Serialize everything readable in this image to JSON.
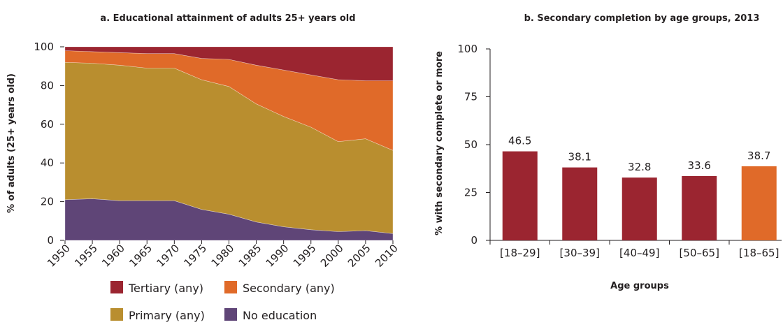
{
  "chart_data": [
    {
      "type": "area",
      "stacked": true,
      "title": "a. Educational attainment of adults 25+ years old",
      "xlabel": "",
      "ylabel": "% of adults (25+ years old)",
      "ylim": [
        0,
        100
      ],
      "yticks": [
        "0",
        "20",
        "40",
        "60",
        "80",
        "100"
      ],
      "x": [
        "1950",
        "1955",
        "1960",
        "1965",
        "1970",
        "1975",
        "1980",
        "1985",
        "1990",
        "1995",
        "2000",
        "2005",
        "2010"
      ],
      "series": [
        {
          "name": "No education",
          "color": "#5f4577",
          "values": [
            21,
            21.5,
            20.5,
            20.5,
            20.5,
            16,
            13.5,
            9.5,
            7,
            5.5,
            4.5,
            5,
            3.5
          ]
        },
        {
          "name": "Primary (any)",
          "color": "#b98e2f",
          "values": [
            71,
            70,
            70,
            68.5,
            68.5,
            67,
            66,
            61,
            57,
            53,
            46.5,
            47.5,
            43
          ]
        },
        {
          "name": "Secondary (any)",
          "color": "#e06a29",
          "values": [
            6,
            6,
            6.5,
            7.5,
            7.5,
            11,
            14,
            20,
            24,
            27,
            32,
            30,
            36
          ]
        },
        {
          "name": "Tertiary (any)",
          "color": "#9b2530",
          "values": [
            2,
            2.5,
            3,
            3.5,
            3.5,
            6,
            6.5,
            9.5,
            12,
            14.5,
            17,
            17.5,
            17.5
          ]
        }
      ],
      "legend": [
        {
          "name": "Tertiary (any)",
          "color": "#9b2530"
        },
        {
          "name": "Secondary (any)",
          "color": "#e06a29"
        },
        {
          "name": "Primary (any)",
          "color": "#b98e2f"
        },
        {
          "name": "No education",
          "color": "#5f4577"
        }
      ],
      "legend_position": "bottom"
    },
    {
      "type": "bar",
      "title": "b. Secondary completion by age groups, 2013",
      "xlabel": "Age groups",
      "ylabel": "% with secondary complete or more",
      "ylim": [
        0,
        100
      ],
      "yticks": [
        "0",
        "25",
        "50",
        "75",
        "100"
      ],
      "categories": [
        "[18–29]",
        "[30–39]",
        "[40–49]",
        "[50–65]",
        "[18–65]"
      ],
      "values": [
        46.5,
        38.1,
        32.8,
        33.6,
        38.7
      ],
      "value_labels": [
        "46.5",
        "38.1",
        "32.8",
        "33.6",
        "38.7"
      ],
      "colors": [
        "#9b2530",
        "#9b2530",
        "#9b2530",
        "#9b2530",
        "#e06a29"
      ]
    }
  ]
}
